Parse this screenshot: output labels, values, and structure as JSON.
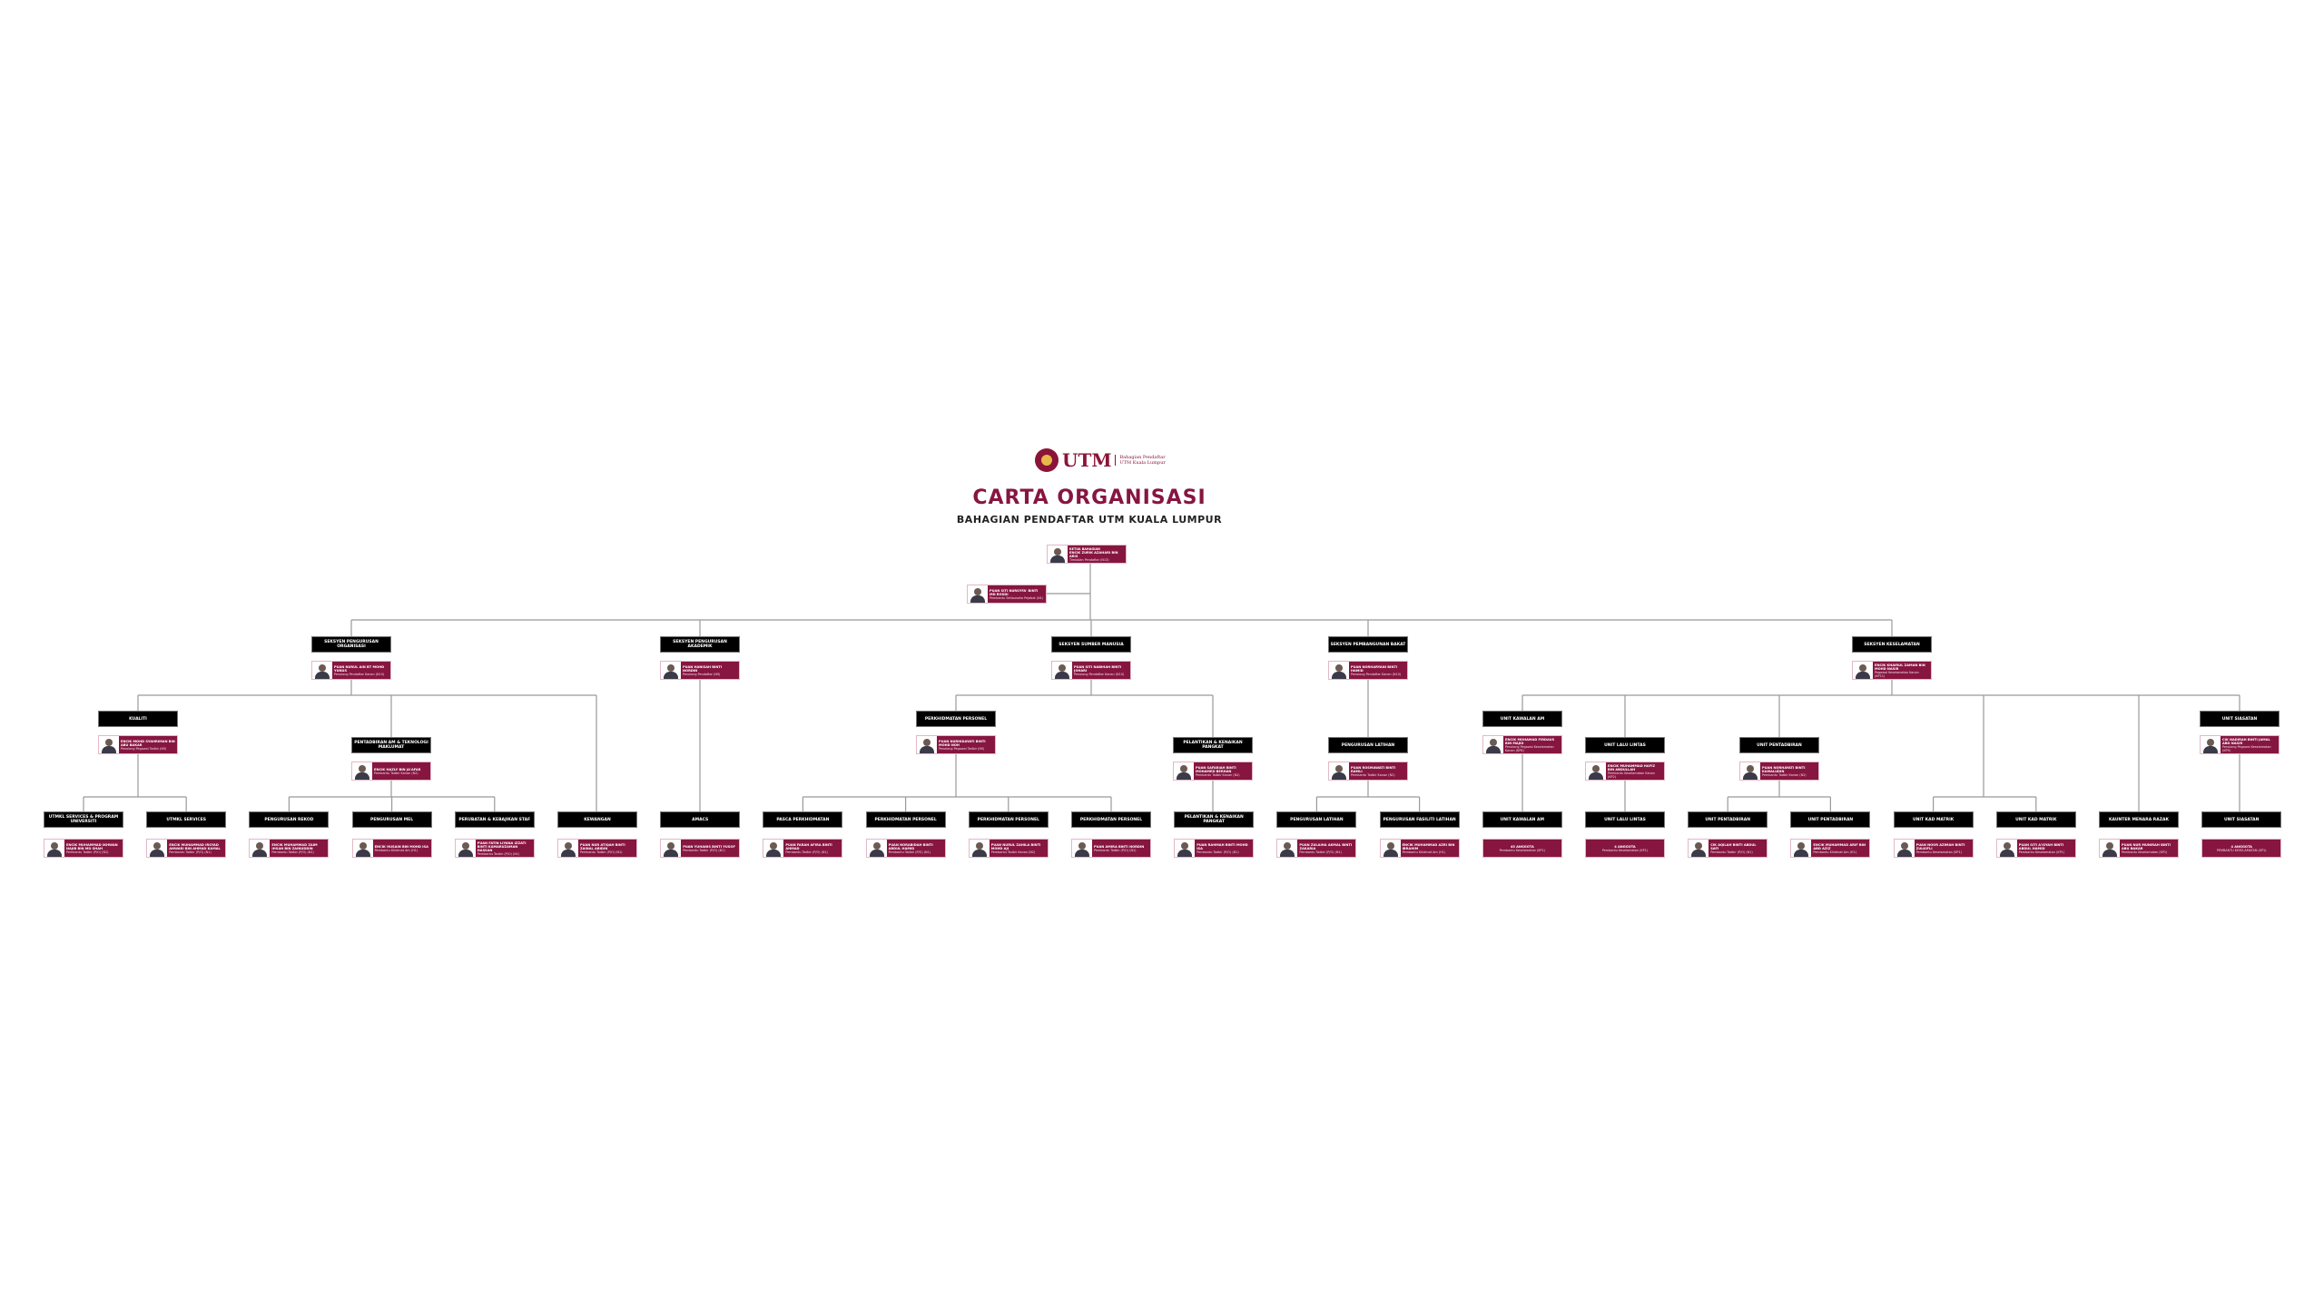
{
  "header": {
    "logo_text": "UTM",
    "logo_sub1": "Bahagian Pendaftar",
    "logo_sub2": "UTM Kuala Lumpur",
    "title": "CARTA ORGANISASI",
    "subtitle": "BAHAGIAN PENDAFTAR UTM KUALA LUMPUR"
  },
  "colors": {
    "brand": "#861640",
    "header_box": "#000000",
    "connector": "#999999"
  },
  "head": {
    "role": "KETUA BAHAGIAN",
    "name": "Encik Zurik Azahari bin Aris",
    "title": "Timbalan Pendaftar (N13)"
  },
  "secretary": {
    "name": "Puan Siti Nursyfa' binti Md Rosdi",
    "title": "Pembantu Setiausaha Pejabat (N1)"
  },
  "sections": [
    {
      "label": "SEKSYEN PENGURUSAN ORGANISASI",
      "name": "Puan Nurul Ain bt Mohd Yunus",
      "title": "Penolong Pendaftar Kanan (N10)"
    },
    {
      "label": "SEKSYEN PENGURUSAN AKADEMIK",
      "name": "Puan Hanisah binti Nordin",
      "title": "Penolong Pendaftar (N9)"
    },
    {
      "label": "SEKSYEN SUMBER MANUSIA",
      "name": "Puan Siti Nabihah binti Johari",
      "title": "Penolong Pendaftar Kanan (N10)"
    },
    {
      "label": "SEKSYEN PEMBANGUNAN BAKAT",
      "name": "Puan Norharyani binti Hamid",
      "title": "Penolong Pendaftar Kanan (N10)"
    },
    {
      "label": "SEKSYEN KESELAMATAN",
      "name": "Encik Khairul Zaman bin Mohd Nasir",
      "title": "Pegawai Keselamatan Kanan (KP11)"
    }
  ],
  "units": [
    {
      "label": "KUALITI",
      "name": "Encik Mohd Syahriman bin Abu Bakar",
      "title": "Penolong Pegawai Tadbir (N5)"
    },
    {
      "label": "PENTADBIRAN AM & TEKNOLOGI MAKLUMAT",
      "name": "Encik Hazly bin Ja'afar",
      "title": "Pembantu Tadbir Kanan (N2)"
    },
    {
      "label": "PERKHIDMATAN PERSONEL",
      "name": "Puan Nurhidayati binti Mohd Noh",
      "title": "Penolong Pegawai Tadbir (N5)"
    },
    {
      "label": "PELANTIKAN & KENAIKAN PANGKAT",
      "name": "Puan Safariah binti Mohamed Berhan",
      "title": "Pembantu Tadbir Kanan (N2)"
    },
    {
      "label": "PENGURUSAN LATIHAN",
      "name": "Puan Rosmawati binti Ramli",
      "title": "Pembantu Tadbir Kanan (N2)"
    },
    {
      "label": "UNIT KAWALAN AM",
      "name": "Encik Mohamad Firdaus bin Majid",
      "title": "Penolong Pegawai Keselamatan Kanan (KP8)"
    },
    {
      "label": "UNIT LALU LINTAS",
      "name": "Encik Muhammad Hafiz bin Abdullah",
      "title": "Pembantu Keselamatan Kanan (KP2)"
    },
    {
      "label": "UNIT PENTADBIRAN",
      "name": "Puan Norhayati binti Kamaludin",
      "title": "Pembantu Tadbir Kanan (N2)"
    },
    {
      "label": "UNIT SIASATAN",
      "name": "Cik Nadirah binti Jamal Abd Nasir",
      "title": "Penolong Pegawai Keselamatan (KP5)"
    }
  ],
  "teams": [
    {
      "label": "UTMKL SERVICES & PROGRAM UNIVERSITI",
      "name": "Encik Muhammad Ikhwan Najib bin Md Shah",
      "title": "Pembantu Tadbir (P/O) (N1)"
    },
    {
      "label": "UTMKL SERVICES",
      "name": "Encik Muhammad Irsyad Anwari bin Ahmad Kamal",
      "title": "Pembantu Tadbir (P/O) (N1)"
    },
    {
      "label": "PENGURUSAN REKOD",
      "name": "Encik Muhammad Zaim Ihsan bin Zainuddin",
      "title": "Pembantu Tadbir (P/O) (N1)"
    },
    {
      "label": "PENGURUSAN MEL",
      "name": "Encik Husain bin Mohd Isa",
      "title": "Pembantu Khidmat Am (H1)"
    },
    {
      "label": "PERUBATAN & KEBAJIKAN STAF",
      "name": "Puan Fatin Liyana Izzati binti Kamaruzaman Hassan",
      "title": "Pembantu Tadbir (P/O) (N1)"
    },
    {
      "label": "KEWANGAN",
      "name": "Puan Nur Atiqah binti Zainal Abidin",
      "title": "Pembantu Tadbir (P/O) (N1)"
    },
    {
      "label": "AMACS",
      "name": "Puan Yuhanis binti Yusof",
      "title": "Pembantu Tadbir (P/O) (N1)"
    },
    {
      "label": "PASCA PERKHIDMATAN",
      "name": "Puan Farah Afira binti Ahmad",
      "title": "Pembantu Tadbir (P/O) (N1)"
    },
    {
      "label": "PERKHIDMATAN PERSONEL",
      "name": "Puan Norabidah binti Abdul Hamid",
      "title": "Pembantu Tadbir (P/O) (N1)"
    },
    {
      "label": "PERKHIDMATAN PERSONEL",
      "name": "Puan Nurul Zahila binti Mohd Aji",
      "title": "Pembantu Tadbir Kanan (N2)"
    },
    {
      "label": "PERKHIDMATAN PERSONEL",
      "name": "Puan Amira binti Nordin",
      "title": "Pembantu Tadbir (P/O) (N1)"
    },
    {
      "label": "PELANTIKAN & KENAIKAN PANGKAT",
      "name": "Puan Rahmah binti Mohd Isa",
      "title": "Pembantu Tadbir (P/O) (N1)"
    },
    {
      "label": "PENGURUSAN LATIHAN",
      "name": "Puan Zulaiha Akmal binti Zakaria",
      "title": "Pembantu Tadbir (P/O) (N1)"
    },
    {
      "label": "PENGURUSAN FASILITI LATIHAN",
      "name": "Encik Muhammad Azri bin Ibrahim",
      "title": "Pembantu Khidmat Am (H1)"
    },
    {
      "label": "UNIT KAWALAN AM",
      "name": "45 ANGGOTA",
      "title": "Pembantu Keselamatan (KP1)",
      "group": true
    },
    {
      "label": "UNIT LALU LINTAS",
      "name": "4 ANGGOTA",
      "title": "Pembantu Keselamatan (KP1)",
      "group": true
    },
    {
      "label": "UNIT PENTADBIRAN",
      "name": "Cik Aqilah binti Abdul Safi",
      "title": "Pembantu Tadbir (P/O) (N1)"
    },
    {
      "label": "UNIT PENTADBIRAN",
      "name": "Encik Muhammad Arif bin Abd Aziz",
      "title": "Pembantu Khidmat Am (H1)"
    },
    {
      "label": "UNIT KAD MATRIK",
      "name": "Puan Noor Azimah binti Zulkifli",
      "title": "Pembantu Keselamatan (KP1)"
    },
    {
      "label": "UNIT KAD MATRIK",
      "name": "Puan Siti A'isyah binti Abdul Hamid",
      "title": "Pembantu Keselamatan (KP1)"
    },
    {
      "label": "KAUNTER MENARA RAZAK",
      "name": "Puan Nur Munirah binti Abu Bakar",
      "title": "Pembantu Keselamatan (KP1)"
    },
    {
      "label": "UNIT SIASATAN",
      "name": "4 ANGGOTA",
      "title": "PEMBANTU KESELAMATAN (KP1)",
      "group": true
    }
  ]
}
